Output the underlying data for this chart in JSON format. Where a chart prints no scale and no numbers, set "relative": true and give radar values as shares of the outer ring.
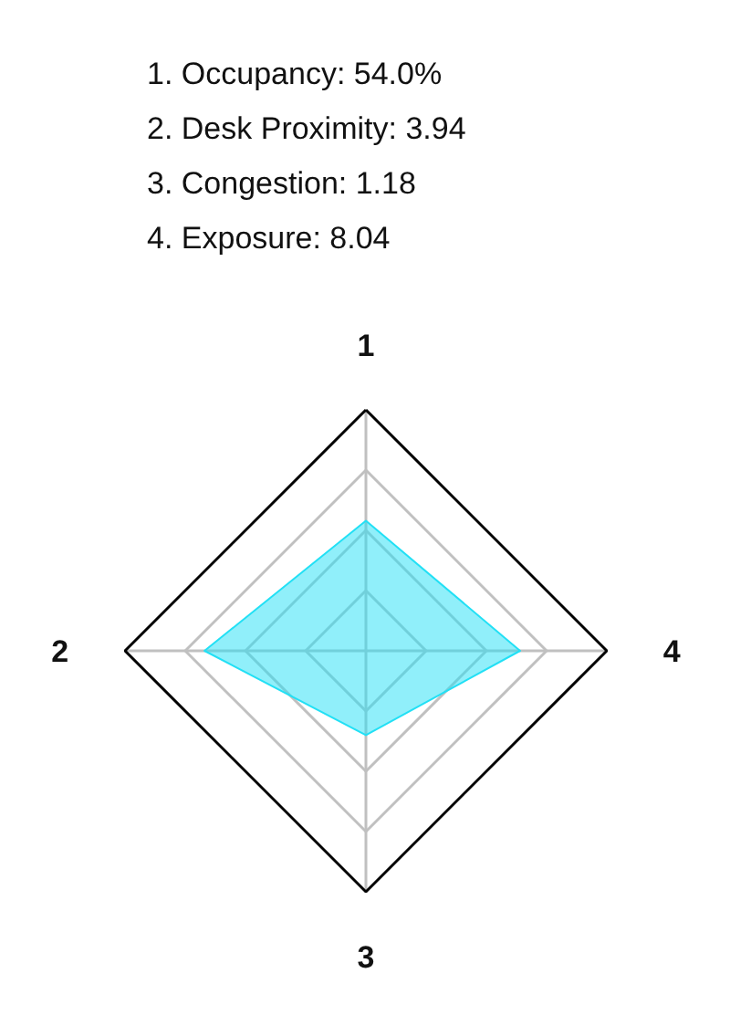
{
  "chart_data": {
    "type": "radar",
    "relative": true,
    "grid": true,
    "categories": [
      "1",
      "4",
      "3",
      "2"
    ],
    "series": [
      {
        "color": "#22e0f5",
        "values": [
          0.54,
          0.64,
          0.35,
          0.67
        ]
      }
    ],
    "annotations": [
      "1. Occupancy: 54.0%",
      "2. Desk Proximity: 3.94",
      "3. Congestion: 1.18",
      "4. Exposure: 8.04"
    ]
  }
}
